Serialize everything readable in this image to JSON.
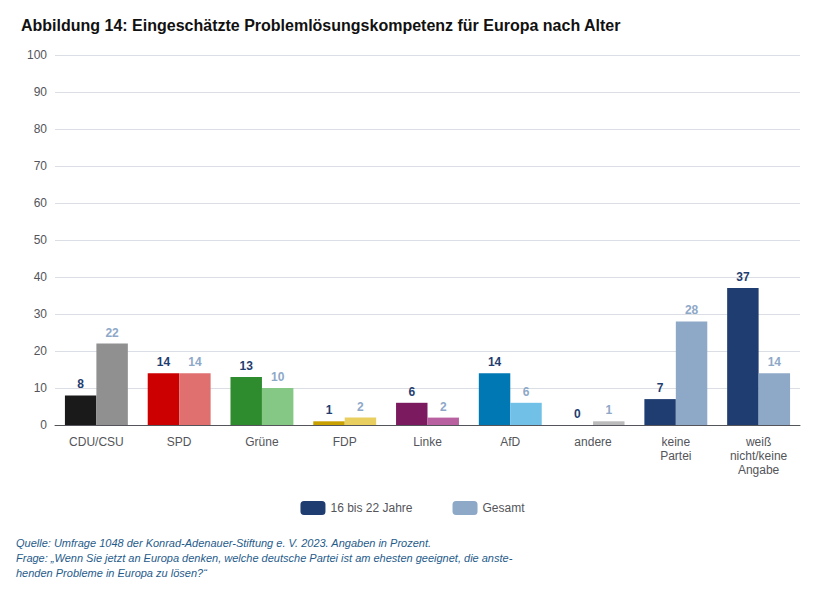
{
  "chart_data": {
    "type": "bar",
    "title": "Abbildung 14: Eingeschätzte Problemlösungskompetenz für Europa nach Alter",
    "categories": [
      "CDU/CSU",
      "SPD",
      "Grüne",
      "FDP",
      "Linke",
      "AfD",
      "andere",
      "keine\nPartei",
      "weiß\nnicht/keine\nAngabe"
    ],
    "series": [
      {
        "name": "16 bis 22 Jahre",
        "color": "#1F3D70",
        "colors": [
          "#1A1A1A",
          "#CC0000",
          "#2E8B2E",
          "#C8A000",
          "#7B1A5E",
          "#0078B4",
          "#666666",
          "#1F3D70",
          "#1F3D70"
        ],
        "values": [
          8,
          14,
          13,
          1,
          6,
          14,
          0,
          7,
          37
        ]
      },
      {
        "name": "Gesamt",
        "color": "#8EA8C8",
        "colors": [
          "#909090",
          "#E07070",
          "#85C885",
          "#E8CF60",
          "#B860A0",
          "#70C0E8",
          "#BBBBBB",
          "#8EA8C8",
          "#8EA8C8"
        ],
        "values": [
          22,
          14,
          10,
          2,
          2,
          6,
          1,
          28,
          14
        ]
      }
    ],
    "ylim": [
      0,
      100
    ],
    "yticks": [
      0,
      10,
      20,
      30,
      40,
      50,
      60,
      70,
      80,
      90,
      100
    ],
    "grid": true,
    "legend": "bottom",
    "data_labels": true,
    "annotations": [
      "Quelle: Umfrage 1048 der Konrad-Adenauer-Stiftung e. V. 2023. Angaben in Prozent.\nFrage: „Wenn Sie jetzt an Europa denken, welche deutsche Partei ist am ehesten geeignet, die anste-\nhenden Probleme in Europa zu lösen?“"
    ]
  }
}
